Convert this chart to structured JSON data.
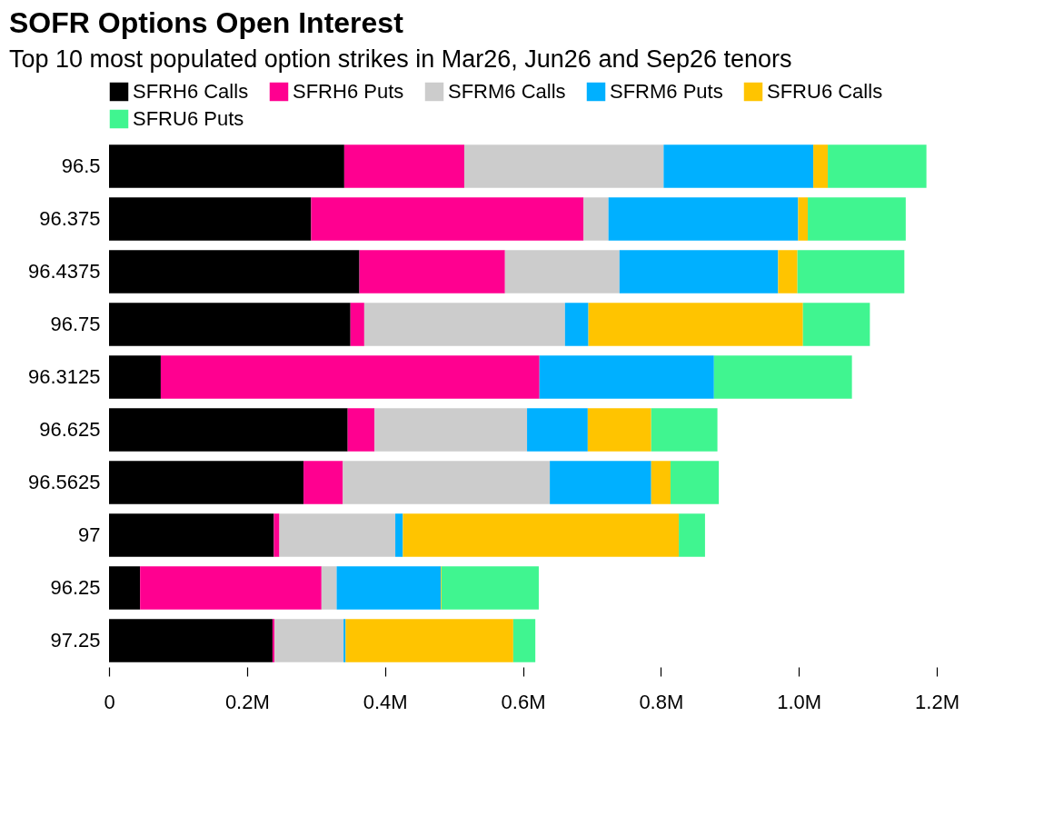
{
  "chart_data": {
    "type": "bar",
    "orientation": "horizontal",
    "stacked": true,
    "title": "SOFR Options Open Interest",
    "subtitle": "Top 10 most populated option strikes in Mar26, Jun26 and Sep26 tenors",
    "legend": "top",
    "categories": [
      "96.5",
      "96.375",
      "96.4375",
      "96.75",
      "96.3125",
      "96.625",
      "96.5625",
      "97",
      "96.25",
      "97.25"
    ],
    "series": [
      {
        "name": "SFRH6 Calls",
        "color": "#000000",
        "values": [
          0.341,
          0.293,
          0.363,
          0.35,
          0.075,
          0.346,
          0.282,
          0.239,
          0.045,
          0.237
        ]
      },
      {
        "name": "SFRH6 Puts",
        "color": "#ff0090",
        "values": [
          0.174,
          0.395,
          0.211,
          0.02,
          0.549,
          0.039,
          0.057,
          0.008,
          0.263,
          0.003
        ]
      },
      {
        "name": "SFRM6 Calls",
        "color": "#cccccc",
        "values": [
          0.289,
          0.036,
          0.166,
          0.291,
          null,
          0.221,
          0.3,
          0.168,
          0.022,
          0.1
        ]
      },
      {
        "name": "SFRM6 Puts",
        "color": "#00b0ff",
        "values": [
          0.217,
          0.275,
          0.23,
          0.034,
          0.253,
          0.088,
          0.147,
          0.011,
          0.151,
          0.003
        ]
      },
      {
        "name": "SFRU6 Calls",
        "color": "#ffc400",
        "values": [
          0.021,
          0.014,
          0.028,
          0.311,
          0,
          0.092,
          0.028,
          0.4,
          0.001,
          0.243
        ]
      },
      {
        "name": "SFRU6 Puts",
        "color": "#40f590",
        "values": [
          0.143,
          0.142,
          0.155,
          0.097,
          0.2,
          0.096,
          0.07,
          0.038,
          0.141,
          0.032
        ]
      }
    ],
    "xlim": [
      0,
      1.2
    ],
    "xticks": [
      0,
      {
        "value": 0.2,
        "label": "0.2M"
      },
      {
        "value": 0.4,
        "label": "0.4M"
      },
      {
        "value": 0.6,
        "label": "0.6M"
      },
      {
        "value": 0.8,
        "label": "0.8M"
      },
      {
        "value": 1.0,
        "label": "1.0M"
      },
      {
        "value": 1.2,
        "label": "1.2M"
      }
    ]
  }
}
